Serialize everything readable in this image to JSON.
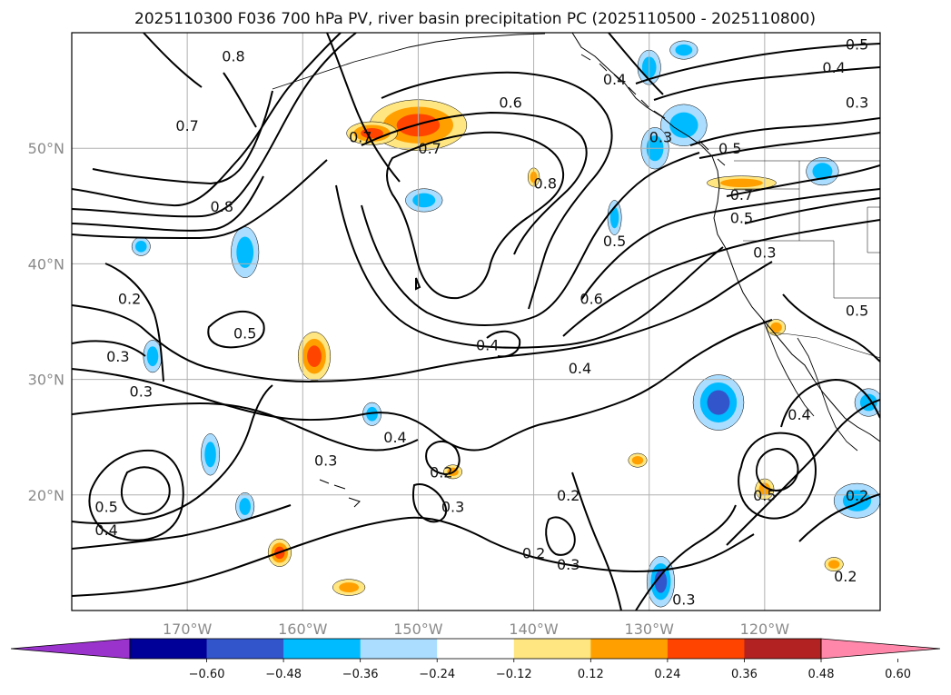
{
  "title": "2025110300 F036 700 hPa PV, river basin precipitation PC (2025110500 - 2025110800)",
  "map": {
    "projection": "plate-carree",
    "lon_range": [
      -180,
      -110
    ],
    "lat_range": [
      10,
      60
    ],
    "grid": true,
    "lon_ticks": [
      {
        "lon": -170,
        "label": "170°W"
      },
      {
        "lon": -160,
        "label": "160°W"
      },
      {
        "lon": -150,
        "label": "150°W"
      },
      {
        "lon": -140,
        "label": "140°W"
      },
      {
        "lon": -130,
        "label": "130°W"
      },
      {
        "lon": -120,
        "label": "120°W"
      }
    ],
    "lat_ticks": [
      {
        "lat": 50,
        "label": "50°N"
      },
      {
        "lat": 40,
        "label": "40°N"
      },
      {
        "lat": 30,
        "label": "30°N"
      },
      {
        "lat": 20,
        "label": "20°N"
      }
    ]
  },
  "colorbar": {
    "orientation": "horizontal",
    "extend": "both",
    "levels": [
      -0.72,
      -0.6,
      -0.48,
      -0.36,
      -0.24,
      -0.12,
      0.12,
      0.24,
      0.36,
      0.48,
      0.6,
      0.72
    ],
    "colors": [
      "#9933cc",
      "#000099",
      "#3355cc",
      "#00bbff",
      "#aaddff",
      "#ffffff",
      "#ffe680",
      "#ffa000",
      "#ff4400",
      "#b22222",
      "#ff88aa"
    ],
    "under_color": "#9933cc",
    "over_color": "#ff88aa",
    "tick_labels": [
      "−0.60",
      "−0.48",
      "−0.36",
      "−0.24",
      "−0.12",
      "0.12",
      "0.24",
      "0.36",
      "0.48",
      "0.60"
    ],
    "tick_values": [
      -0.6,
      -0.48,
      -0.36,
      -0.24,
      -0.12,
      0.12,
      0.24,
      0.36,
      0.48,
      0.6
    ]
  },
  "contour_labels": [
    {
      "text": "0.8",
      "lon": -166,
      "lat": 58
    },
    {
      "text": "0.7",
      "lon": -170,
      "lat": 52
    },
    {
      "text": "0.8",
      "lon": -167,
      "lat": 45
    },
    {
      "text": "0.7",
      "lon": -155,
      "lat": 51
    },
    {
      "text": "0.6",
      "lon": -142,
      "lat": 54
    },
    {
      "text": "0.7",
      "lon": -149,
      "lat": 50
    },
    {
      "text": "0.8",
      "lon": -139,
      "lat": 47
    },
    {
      "text": "0.4",
      "lon": -133,
      "lat": 56
    },
    {
      "text": "0.3",
      "lon": -129,
      "lat": 51
    },
    {
      "text": "0.5",
      "lon": -123,
      "lat": 50
    },
    {
      "text": "0.4",
      "lon": -114,
      "lat": 57
    },
    {
      "text": "0.3",
      "lon": -112,
      "lat": 54
    },
    {
      "text": "0.5",
      "lon": -112,
      "lat": 59
    },
    {
      "text": "0.7",
      "lon": -122,
      "lat": 46
    },
    {
      "text": "0.5",
      "lon": -122,
      "lat": 44
    },
    {
      "text": "0.3",
      "lon": -120,
      "lat": 41
    },
    {
      "text": "0.5",
      "lon": -133,
      "lat": 42
    },
    {
      "text": "0.6",
      "lon": -135,
      "lat": 37
    },
    {
      "text": "0.2",
      "lon": -175,
      "lat": 37
    },
    {
      "text": "0.5",
      "lon": -165,
      "lat": 34
    },
    {
      "text": "0.3",
      "lon": -176,
      "lat": 32
    },
    {
      "text": "0.3",
      "lon": -174,
      "lat": 29
    },
    {
      "text": "0.4",
      "lon": -144,
      "lat": 33
    },
    {
      "text": "0.4",
      "lon": -136,
      "lat": 31
    },
    {
      "text": "0.5",
      "lon": -112,
      "lat": 36
    },
    {
      "text": "0.4",
      "lon": -117,
      "lat": 27
    },
    {
      "text": "0.4",
      "lon": -152,
      "lat": 25
    },
    {
      "text": "0.3",
      "lon": -158,
      "lat": 23
    },
    {
      "text": "0.2",
      "lon": -148,
      "lat": 22
    },
    {
      "text": "0.3",
      "lon": -147,
      "lat": 19
    },
    {
      "text": "0.2",
      "lon": -137,
      "lat": 20
    },
    {
      "text": "0.5",
      "lon": -177,
      "lat": 19
    },
    {
      "text": "0.4",
      "lon": -177,
      "lat": 17
    },
    {
      "text": "0.5",
      "lon": -120,
      "lat": 20
    },
    {
      "text": "0.2",
      "lon": -112,
      "lat": 20
    },
    {
      "text": "0.2",
      "lon": -140,
      "lat": 15
    },
    {
      "text": "0.3",
      "lon": -137,
      "lat": 14
    },
    {
      "text": "0.2",
      "lon": -113,
      "lat": 13
    },
    {
      "text": "0.3",
      "lon": -127,
      "lat": 11
    }
  ],
  "shaded_regions": [
    {
      "lon": -150,
      "lat": 52,
      "rx": 4.2,
      "ry": 2.2,
      "value": 0.42
    },
    {
      "lon": -154,
      "lat": 51.3,
      "rx": 2.2,
      "ry": 1.0,
      "value": 0.38
    },
    {
      "lon": -159,
      "lat": 32,
      "rx": 1.4,
      "ry": 2.1,
      "value": 0.45
    },
    {
      "lon": -162,
      "lat": 15,
      "rx": 1.0,
      "ry": 1.2,
      "value": 0.4
    },
    {
      "lon": -122,
      "lat": 47,
      "rx": 3.0,
      "ry": 0.6,
      "value": 0.26
    },
    {
      "lon": -140,
      "lat": 47.5,
      "rx": 0.5,
      "ry": 0.8,
      "value": 0.26
    },
    {
      "lon": -119,
      "lat": 34.5,
      "rx": 0.8,
      "ry": 0.7,
      "value": 0.3
    },
    {
      "lon": -120,
      "lat": 20.5,
      "rx": 0.8,
      "ry": 0.9,
      "value": 0.3
    },
    {
      "lon": -131,
      "lat": 23,
      "rx": 0.8,
      "ry": 0.6,
      "value": 0.26
    },
    {
      "lon": -147,
      "lat": 22,
      "rx": 0.8,
      "ry": 0.6,
      "value": 0.26
    },
    {
      "lon": -156,
      "lat": 12,
      "rx": 1.4,
      "ry": 0.7,
      "value": 0.26
    },
    {
      "lon": -114,
      "lat": 14,
      "rx": 0.8,
      "ry": 0.6,
      "value": 0.26
    },
    {
      "lon": -124,
      "lat": 28,
      "rx": 2.2,
      "ry": 2.4,
      "value": -0.45
    },
    {
      "lon": -129,
      "lat": 12.5,
      "rx": 1.2,
      "ry": 2.2,
      "value": -0.4
    },
    {
      "lon": -130,
      "lat": 57,
      "rx": 1.0,
      "ry": 1.5,
      "value": -0.3
    },
    {
      "lon": -127,
      "lat": 52,
      "rx": 2.0,
      "ry": 1.8,
      "value": -0.3
    },
    {
      "lon": -129.5,
      "lat": 50,
      "rx": 1.2,
      "ry": 1.8,
      "value": -0.3
    },
    {
      "lon": -149.5,
      "lat": 45.5,
      "rx": 1.6,
      "ry": 1.0,
      "value": -0.28
    },
    {
      "lon": -165,
      "lat": 41,
      "rx": 1.2,
      "ry": 2.2,
      "value": -0.28
    },
    {
      "lon": -174,
      "lat": 41.5,
      "rx": 0.8,
      "ry": 0.8,
      "value": -0.28
    },
    {
      "lon": -173,
      "lat": 32,
      "rx": 0.8,
      "ry": 1.4,
      "value": -0.3
    },
    {
      "lon": -154,
      "lat": 27,
      "rx": 0.8,
      "ry": 1.0,
      "value": -0.3
    },
    {
      "lon": -168,
      "lat": 23.5,
      "rx": 0.8,
      "ry": 1.8,
      "value": -0.3
    },
    {
      "lon": -165,
      "lat": 19,
      "rx": 0.8,
      "ry": 1.2,
      "value": -0.28
    },
    {
      "lon": -115,
      "lat": 48,
      "rx": 1.4,
      "ry": 1.2,
      "value": -0.3
    },
    {
      "lon": -112,
      "lat": 19.5,
      "rx": 2.0,
      "ry": 1.5,
      "value": -0.3
    },
    {
      "lon": -111,
      "lat": 28,
      "rx": 1.2,
      "ry": 1.2,
      "value": -0.3
    },
    {
      "lon": -127,
      "lat": 58.5,
      "rx": 1.2,
      "ry": 0.8,
      "value": -0.3
    },
    {
      "lon": -133,
      "lat": 44,
      "rx": 0.6,
      "ry": 1.5,
      "value": -0.25
    }
  ]
}
